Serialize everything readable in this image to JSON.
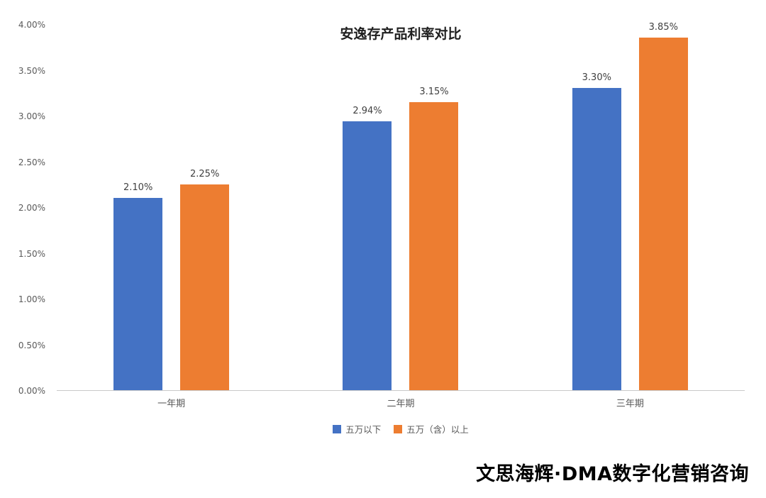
{
  "page": {
    "footer": "文思海辉·DMA数字化营销咨询"
  },
  "chart_data": {
    "type": "bar",
    "title": "安逸存产品利率对比",
    "categories": [
      "一年期",
      "二年期",
      "三年期"
    ],
    "series": [
      {
        "name": "五万以下",
        "color": "#4472C4",
        "values": [
          2.1,
          2.94,
          3.3
        ],
        "data_labels": [
          "2.10%",
          "2.94%",
          "3.30%"
        ]
      },
      {
        "name": "五万（含）以上",
        "color": "#ED7D31",
        "values": [
          2.25,
          3.15,
          3.85
        ],
        "data_labels": [
          "2.25%",
          "3.15%",
          "3.85%"
        ]
      }
    ],
    "ylabel": "",
    "xlabel": "",
    "ylim": [
      0,
      4.0
    ],
    "ytick_step": 0.5,
    "ytick_labels": [
      "0.00%",
      "0.50%",
      "1.00%",
      "1.50%",
      "2.00%",
      "2.50%",
      "3.00%",
      "3.50%",
      "4.00%"
    ],
    "grid": false,
    "legend_position": "bottom"
  },
  "colors": {
    "series1": "#4472C4",
    "series2": "#ED7D31",
    "axis_line": "#c9c9c9",
    "tick_text": "#595959",
    "value_text": "#404040"
  }
}
